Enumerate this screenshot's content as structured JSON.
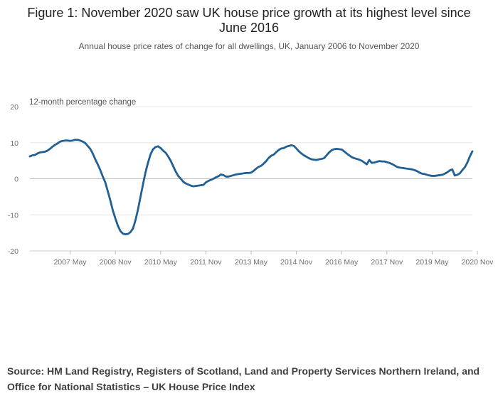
{
  "figure": {
    "title": "Figure 1: November 2020 saw UK house price growth at its highest level since June 2016",
    "subtitle": "Annual house price rates of change for all dwellings, UK, January 2006 to November 2020",
    "source": "Source: HM Land Registry, Registers of Scotland, Land and Property Services Northern Ireland, and Office for National Statistics – UK House Price Index"
  },
  "chart_data": {
    "type": "line",
    "title": "Figure 1: November 2020 saw UK house price growth at its highest level since June 2016",
    "subtitle": "Annual house price rates of change for all dwellings, UK, January 2006 to November 2020",
    "ylabel": "12-month percentage change",
    "xlabel": "",
    "ylim": [
      -20,
      20
    ],
    "yticks": [
      20,
      10,
      0,
      -10,
      -20
    ],
    "grid": true,
    "line_color": "#206095",
    "x_start": "2006 Jan",
    "x_end": "2020 Nov",
    "xticks": [
      {
        "label": "2007 May",
        "index": 16
      },
      {
        "label": "2008 Nov",
        "index": 34
      },
      {
        "label": "2010 May",
        "index": 52
      },
      {
        "label": "2011 Nov",
        "index": 70
      },
      {
        "label": "2013 May",
        "index": 88
      },
      {
        "label": "2014 Nov",
        "index": 106
      },
      {
        "label": "2016 May",
        "index": 124
      },
      {
        "label": "2017 Nov",
        "index": 142
      },
      {
        "label": "2019 May",
        "index": 160
      },
      {
        "label": "2020 Nov",
        "index": 178
      }
    ],
    "series": [
      {
        "name": "UK",
        "values": [
          6.2,
          6.5,
          6.6,
          7.0,
          7.3,
          7.4,
          7.5,
          7.8,
          8.3,
          8.9,
          9.4,
          9.8,
          10.3,
          10.5,
          10.6,
          10.6,
          10.5,
          10.6,
          10.8,
          10.8,
          10.6,
          10.3,
          9.9,
          9.1,
          8.3,
          7.0,
          5.4,
          4.0,
          2.4,
          0.6,
          -1.0,
          -3.5,
          -6.0,
          -8.8,
          -11.0,
          -13.0,
          -14.5,
          -15.2,
          -15.4,
          -15.3,
          -14.8,
          -13.8,
          -11.5,
          -8.5,
          -5.0,
          -1.5,
          1.8,
          4.5,
          6.8,
          8.2,
          8.8,
          9.0,
          8.5,
          7.8,
          7.2,
          6.2,
          5.0,
          3.5,
          2.0,
          0.8,
          0.0,
          -0.8,
          -1.3,
          -1.6,
          -1.9,
          -2.1,
          -2.0,
          -1.9,
          -1.8,
          -1.7,
          -1.0,
          -0.6,
          -0.3,
          0.0,
          0.4,
          0.7,
          1.2,
          1.0,
          0.6,
          0.6,
          0.8,
          1.0,
          1.2,
          1.3,
          1.4,
          1.5,
          1.6,
          1.6,
          1.7,
          2.2,
          2.8,
          3.3,
          3.6,
          4.2,
          4.9,
          5.8,
          6.4,
          6.7,
          7.4,
          8.0,
          8.4,
          8.5,
          8.9,
          9.1,
          9.3,
          9.1,
          8.4,
          7.6,
          7.0,
          6.5,
          6.1,
          5.7,
          5.4,
          5.3,
          5.2,
          5.4,
          5.5,
          5.7,
          6.5,
          7.3,
          7.9,
          8.2,
          8.3,
          8.2,
          8.1,
          7.6,
          7.0,
          6.5,
          6.0,
          5.7,
          5.5,
          5.3,
          5.0,
          4.5,
          4.0,
          5.2,
          4.4,
          4.5,
          4.7,
          4.9,
          4.8,
          4.8,
          4.6,
          4.4,
          4.1,
          3.7,
          3.3,
          3.1,
          3.0,
          2.9,
          2.8,
          2.7,
          2.6,
          2.4,
          2.1,
          1.7,
          1.4,
          1.3,
          1.1,
          0.9,
          0.8,
          0.8,
          0.9,
          1.0,
          1.1,
          1.4,
          1.8,
          2.3,
          2.6,
          0.9,
          1.1,
          1.5,
          2.4,
          3.2,
          4.5,
          6.2,
          7.6
        ]
      }
    ]
  }
}
